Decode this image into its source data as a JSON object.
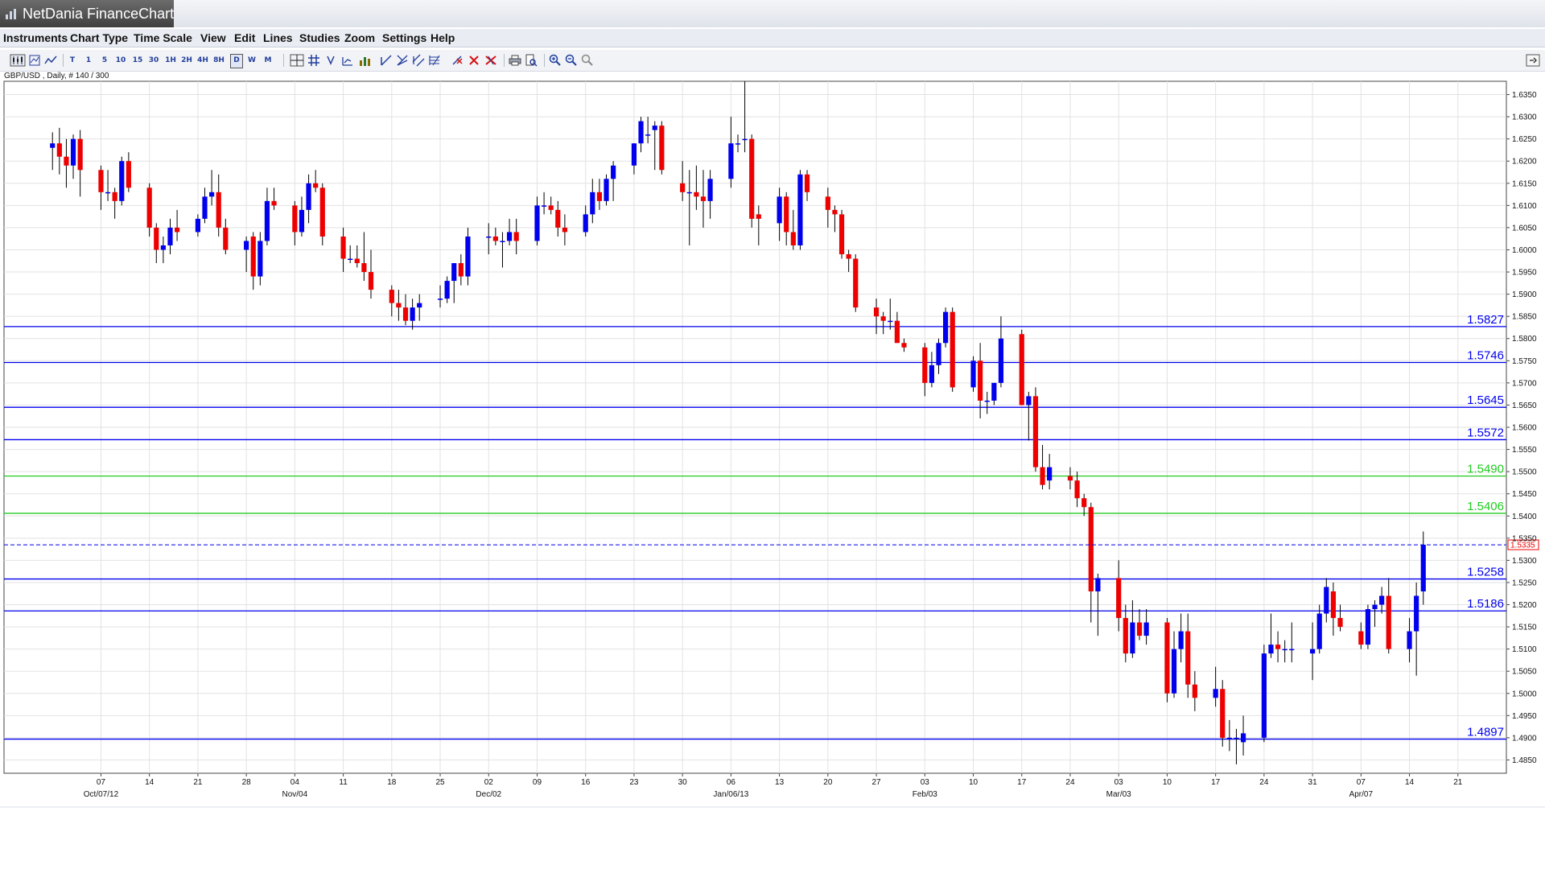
{
  "window": {
    "title": "NetDania FinanceChart"
  },
  "menu": [
    "Instruments",
    "Chart Type",
    "Time Scale",
    "View",
    "Edit",
    "Lines",
    "Studies",
    "Zoom",
    "Settings",
    "Help"
  ],
  "toolbar": {
    "timeframes": [
      "T",
      "1",
      "5",
      "10",
      "15",
      "30",
      "1H",
      "2H",
      "4H",
      "8H",
      "D",
      "W",
      "M"
    ],
    "active_timeframe": "D"
  },
  "symbol_label": "GBP/USD , Daily, # 140 / 300",
  "chart_data": {
    "type": "candlestick",
    "ylim": [
      1.482,
      1.638
    ],
    "y_ticks": [
      1.635,
      1.63,
      1.625,
      1.62,
      1.615,
      1.61,
      1.605,
      1.6,
      1.595,
      1.59,
      1.585,
      1.58,
      1.575,
      1.57,
      1.565,
      1.56,
      1.555,
      1.55,
      1.545,
      1.54,
      1.535,
      1.53,
      1.525,
      1.52,
      1.515,
      1.51,
      1.505,
      1.5,
      1.495,
      1.49,
      1.485
    ],
    "y_tick_labels": [
      "1.6350",
      "1.6300",
      "1.6250",
      "1.6200",
      "1.6150",
      "1.6100",
      "1.6050",
      "1.6000",
      "1.5950",
      "1.5900",
      "1.5850",
      "1.5800",
      "1.5750",
      "1.5700",
      "1.5650",
      "1.5600",
      "1.5550",
      "1.5500",
      "1.5450",
      "1.5400",
      "1.5350",
      "1.5300",
      "1.5250",
      "1.5200",
      "1.5150",
      "1.5100",
      "1.5050",
      "1.5000",
      "1.4950",
      "1.4900",
      "1.4850"
    ],
    "x_ticks": [
      {
        "day": 7,
        "label": "07",
        "sub": "Oct/07/12"
      },
      {
        "day": 14,
        "label": "14",
        "sub": ""
      },
      {
        "day": 21,
        "label": "21",
        "sub": ""
      },
      {
        "day": 28,
        "label": "28",
        "sub": ""
      },
      {
        "day": 35,
        "label": "04",
        "sub": "Nov/04"
      },
      {
        "day": 42,
        "label": "11",
        "sub": ""
      },
      {
        "day": 49,
        "label": "18",
        "sub": ""
      },
      {
        "day": 56,
        "label": "25",
        "sub": ""
      },
      {
        "day": 63,
        "label": "02",
        "sub": "Dec/02"
      },
      {
        "day": 70,
        "label": "09",
        "sub": ""
      },
      {
        "day": 77,
        "label": "16",
        "sub": ""
      },
      {
        "day": 84,
        "label": "23",
        "sub": ""
      },
      {
        "day": 91,
        "label": "30",
        "sub": ""
      },
      {
        "day": 98,
        "label": "06",
        "sub": "Jan/06/13"
      },
      {
        "day": 105,
        "label": "13",
        "sub": ""
      },
      {
        "day": 112,
        "label": "20",
        "sub": ""
      },
      {
        "day": 119,
        "label": "27",
        "sub": ""
      },
      {
        "day": 126,
        "label": "03",
        "sub": "Feb/03"
      },
      {
        "day": 133,
        "label": "10",
        "sub": ""
      },
      {
        "day": 140,
        "label": "17",
        "sub": ""
      },
      {
        "day": 147,
        "label": "24",
        "sub": ""
      },
      {
        "day": 154,
        "label": "03",
        "sub": "Mar/03"
      },
      {
        "day": 161,
        "label": "10",
        "sub": ""
      },
      {
        "day": 168,
        "label": "17",
        "sub": ""
      },
      {
        "day": 175,
        "label": "24",
        "sub": ""
      },
      {
        "day": 182,
        "label": "31",
        "sub": ""
      },
      {
        "day": 189,
        "label": "07",
        "sub": "Apr/07"
      },
      {
        "day": 196,
        "label": "14",
        "sub": ""
      },
      {
        "day": 203,
        "label": "21",
        "sub": ""
      }
    ],
    "x_range": [
      -7,
      210
    ],
    "grid": true,
    "up_color": "#0000ee",
    "down_color": "#ee0000",
    "candles": [
      [
        0,
        1.623,
        1.6265,
        1.618,
        1.624
      ],
      [
        1,
        1.624,
        1.6275,
        1.617,
        1.621
      ],
      [
        2,
        1.621,
        1.625,
        1.614,
        1.619
      ],
      [
        3,
        1.619,
        1.626,
        1.616,
        1.625
      ],
      [
        4,
        1.625,
        1.627,
        1.612,
        1.618
      ],
      [
        7,
        1.618,
        1.619,
        1.609,
        1.613
      ],
      [
        8,
        1.613,
        1.618,
        1.611,
        1.613
      ],
      [
        9,
        1.613,
        1.614,
        1.607,
        1.611
      ],
      [
        10,
        1.611,
        1.621,
        1.61,
        1.62
      ],
      [
        11,
        1.62,
        1.622,
        1.613,
        1.614
      ],
      [
        14,
        1.614,
        1.615,
        1.603,
        1.605
      ],
      [
        15,
        1.605,
        1.606,
        1.597,
        1.6
      ],
      [
        16,
        1.6,
        1.603,
        1.597,
        1.601
      ],
      [
        17,
        1.601,
        1.607,
        1.599,
        1.605
      ],
      [
        18,
        1.605,
        1.609,
        1.602,
        1.604
      ],
      [
        21,
        1.604,
        1.608,
        1.603,
        1.607
      ],
      [
        22,
        1.607,
        1.614,
        1.606,
        1.612
      ],
      [
        23,
        1.612,
        1.618,
        1.61,
        1.613
      ],
      [
        24,
        1.613,
        1.617,
        1.603,
        1.605
      ],
      [
        25,
        1.605,
        1.607,
        1.599,
        1.6
      ],
      [
        28,
        1.6,
        1.603,
        1.595,
        1.602
      ],
      [
        29,
        1.603,
        1.604,
        1.591,
        1.594
      ],
      [
        30,
        1.594,
        1.604,
        1.592,
        1.602
      ],
      [
        31,
        1.602,
        1.614,
        1.601,
        1.611
      ],
      [
        32,
        1.611,
        1.614,
        1.609,
        1.61
      ],
      [
        35,
        1.61,
        1.611,
        1.601,
        1.604
      ],
      [
        36,
        1.604,
        1.612,
        1.603,
        1.609
      ],
      [
        37,
        1.609,
        1.617,
        1.606,
        1.615
      ],
      [
        38,
        1.615,
        1.618,
        1.613,
        1.614
      ],
      [
        39,
        1.614,
        1.615,
        1.601,
        1.603
      ],
      [
        42,
        1.603,
        1.605,
        1.595,
        1.598
      ],
      [
        43,
        1.598,
        1.601,
        1.597,
        1.598
      ],
      [
        44,
        1.598,
        1.601,
        1.596,
        1.597
      ],
      [
        45,
        1.597,
        1.604,
        1.593,
        1.595
      ],
      [
        46,
        1.595,
        1.6,
        1.589,
        1.591
      ],
      [
        49,
        1.591,
        1.592,
        1.585,
        1.588
      ],
      [
        50,
        1.588,
        1.591,
        1.584,
        1.587
      ],
      [
        51,
        1.587,
        1.59,
        1.583,
        1.584
      ],
      [
        52,
        1.584,
        1.589,
        1.582,
        1.587
      ],
      [
        53,
        1.587,
        1.59,
        1.584,
        1.588
      ],
      [
        56,
        1.589,
        1.592,
        1.587,
        1.589
      ],
      [
        57,
        1.589,
        1.594,
        1.588,
        1.593
      ],
      [
        58,
        1.593,
        1.597,
        1.588,
        1.597
      ],
      [
        59,
        1.597,
        1.599,
        1.592,
        1.594
      ],
      [
        60,
        1.594,
        1.605,
        1.592,
        1.603
      ],
      [
        63,
        1.603,
        1.606,
        1.599,
        1.603
      ],
      [
        64,
        1.603,
        1.605,
        1.601,
        1.602
      ],
      [
        65,
        1.602,
        1.604,
        1.596,
        1.602
      ],
      [
        66,
        1.602,
        1.607,
        1.601,
        1.604
      ],
      [
        67,
        1.604,
        1.607,
        1.599,
        1.602
      ],
      [
        70,
        1.602,
        1.612,
        1.601,
        1.61
      ],
      [
        71,
        1.61,
        1.613,
        1.608,
        1.61
      ],
      [
        72,
        1.61,
        1.612,
        1.608,
        1.609
      ],
      [
        73,
        1.609,
        1.611,
        1.603,
        1.605
      ],
      [
        74,
        1.605,
        1.608,
        1.601,
        1.604
      ],
      [
        77,
        1.604,
        1.61,
        1.603,
        1.608
      ],
      [
        78,
        1.608,
        1.616,
        1.606,
        1.613
      ],
      [
        79,
        1.613,
        1.616,
        1.609,
        1.611
      ],
      [
        80,
        1.611,
        1.617,
        1.61,
        1.616
      ],
      [
        81,
        1.616,
        1.62,
        1.611,
        1.619
      ],
      [
        84,
        1.619,
        1.624,
        1.617,
        1.624
      ],
      [
        85,
        1.624,
        1.63,
        1.622,
        1.629
      ],
      [
        86,
        1.626,
        1.63,
        1.624,
        1.626
      ],
      [
        87,
        1.627,
        1.629,
        1.618,
        1.628
      ],
      [
        88,
        1.628,
        1.629,
        1.617,
        1.618
      ],
      [
        91,
        1.615,
        1.62,
        1.611,
        1.613
      ],
      [
        92,
        1.613,
        1.618,
        1.601,
        1.613
      ],
      [
        93,
        1.613,
        1.619,
        1.609,
        1.612
      ],
      [
        94,
        1.612,
        1.618,
        1.605,
        1.611
      ],
      [
        95,
        1.611,
        1.618,
        1.607,
        1.616
      ],
      [
        98,
        1.616,
        1.63,
        1.614,
        1.624
      ],
      [
        99,
        1.624,
        1.626,
        1.622,
        1.624
      ],
      [
        100,
        1.625,
        1.638,
        1.622,
        1.625
      ],
      [
        101,
        1.625,
        1.626,
        1.605,
        1.607
      ],
      [
        102,
        1.608,
        1.61,
        1.601,
        1.607
      ],
      [
        105,
        1.606,
        1.614,
        1.602,
        1.612
      ],
      [
        106,
        1.612,
        1.613,
        1.601,
        1.604
      ],
      [
        107,
        1.604,
        1.609,
        1.6,
        1.601
      ],
      [
        108,
        1.601,
        1.618,
        1.6,
        1.617
      ],
      [
        109,
        1.617,
        1.618,
        1.611,
        1.613
      ],
      [
        112,
        1.612,
        1.614,
        1.605,
        1.609
      ],
      [
        113,
        1.609,
        1.61,
        1.604,
        1.608
      ],
      [
        114,
        1.608,
        1.609,
        1.598,
        1.599
      ],
      [
        115,
        1.599,
        1.6,
        1.595,
        1.598
      ],
      [
        116,
        1.598,
        1.599,
        1.586,
        1.587
      ],
      [
        119,
        1.587,
        1.589,
        1.581,
        1.585
      ],
      [
        120,
        1.585,
        1.586,
        1.581,
        1.584
      ],
      [
        121,
        1.584,
        1.589,
        1.582,
        1.584
      ],
      [
        122,
        1.584,
        1.586,
        1.579,
        1.579
      ],
      [
        123,
        1.579,
        1.58,
        1.577,
        1.578
      ],
      [
        126,
        1.578,
        1.579,
        1.567,
        1.57
      ],
      [
        127,
        1.57,
        1.577,
        1.569,
        1.574
      ],
      [
        128,
        1.574,
        1.58,
        1.572,
        1.579
      ],
      [
        129,
        1.579,
        1.587,
        1.578,
        1.586
      ],
      [
        130,
        1.586,
        1.587,
        1.568,
        1.569
      ],
      [
        133,
        1.569,
        1.576,
        1.568,
        1.575
      ],
      [
        134,
        1.575,
        1.579,
        1.562,
        1.566
      ],
      [
        135,
        1.566,
        1.568,
        1.563,
        1.566
      ],
      [
        136,
        1.566,
        1.57,
        1.565,
        1.57
      ],
      [
        137,
        1.57,
        1.585,
        1.569,
        1.58
      ],
      [
        140,
        1.581,
        1.582,
        1.565,
        1.565
      ],
      [
        141,
        1.565,
        1.568,
        1.557,
        1.567
      ],
      [
        142,
        1.567,
        1.569,
        1.55,
        1.551
      ],
      [
        143,
        1.551,
        1.556,
        1.546,
        1.547
      ],
      [
        144,
        1.548,
        1.554,
        1.546,
        1.551
      ],
      [
        147,
        1.549,
        1.551,
        1.546,
        1.548
      ],
      [
        148,
        1.548,
        1.55,
        1.542,
        1.544
      ],
      [
        149,
        1.544,
        1.545,
        1.54,
        1.542
      ],
      [
        150,
        1.542,
        1.543,
        1.516,
        1.523
      ],
      [
        151,
        1.523,
        1.527,
        1.513,
        1.526
      ],
      [
        154,
        1.526,
        1.53,
        1.514,
        1.517
      ],
      [
        155,
        1.517,
        1.52,
        1.507,
        1.509
      ],
      [
        156,
        1.509,
        1.521,
        1.508,
        1.516
      ],
      [
        157,
        1.516,
        1.519,
        1.512,
        1.513
      ],
      [
        158,
        1.513,
        1.519,
        1.511,
        1.516
      ],
      [
        161,
        1.516,
        1.517,
        1.498,
        1.5
      ],
      [
        162,
        1.5,
        1.514,
        1.499,
        1.51
      ],
      [
        163,
        1.51,
        1.518,
        1.507,
        1.514
      ],
      [
        164,
        1.514,
        1.518,
        1.499,
        1.502
      ],
      [
        165,
        1.502,
        1.505,
        1.496,
        1.499
      ],
      [
        168,
        1.499,
        1.506,
        1.497,
        1.501
      ],
      [
        169,
        1.501,
        1.503,
        1.488,
        1.49
      ],
      [
        170,
        1.49,
        1.494,
        1.487,
        1.49
      ],
      [
        171,
        1.49,
        1.492,
        1.484,
        1.49
      ],
      [
        172,
        1.489,
        1.495,
        1.486,
        1.491
      ],
      [
        175,
        1.49,
        1.511,
        1.489,
        1.509
      ],
      [
        176,
        1.509,
        1.518,
        1.508,
        1.511
      ],
      [
        177,
        1.511,
        1.514,
        1.507,
        1.51
      ],
      [
        178,
        1.51,
        1.512,
        1.507,
        1.51
      ],
      [
        179,
        1.51,
        1.516,
        1.507,
        1.51
      ],
      [
        182,
        1.509,
        1.516,
        1.503,
        1.51
      ],
      [
        183,
        1.51,
        1.52,
        1.509,
        1.518
      ],
      [
        184,
        1.518,
        1.526,
        1.516,
        1.524
      ],
      [
        185,
        1.523,
        1.525,
        1.513,
        1.517
      ],
      [
        186,
        1.517,
        1.52,
        1.514,
        1.515
      ],
      [
        189,
        1.514,
        1.516,
        1.51,
        1.511
      ],
      [
        190,
        1.511,
        1.52,
        1.51,
        1.519
      ],
      [
        191,
        1.519,
        1.521,
        1.515,
        1.52
      ],
      [
        192,
        1.52,
        1.524,
        1.518,
        1.522
      ],
      [
        193,
        1.522,
        1.526,
        1.509,
        1.51
      ],
      [
        196,
        1.51,
        1.517,
        1.507,
        1.514
      ],
      [
        197,
        1.514,
        1.525,
        1.504,
        1.522
      ],
      [
        198,
        1.523,
        1.5365,
        1.52,
        1.5335
      ]
    ],
    "horizontal_lines": [
      {
        "value": 1.5827,
        "label": "1.5827",
        "color": "#0000ee"
      },
      {
        "value": 1.5746,
        "label": "1.5746",
        "color": "#0000ee"
      },
      {
        "value": 1.5645,
        "label": "1.5645",
        "color": "#0000ee"
      },
      {
        "value": 1.5572,
        "label": "1.5572",
        "color": "#0000ee"
      },
      {
        "value": 1.549,
        "label": "1.5490",
        "color": "#22cc22"
      },
      {
        "value": 1.5406,
        "label": "1.5406",
        "color": "#22cc22"
      },
      {
        "value": 1.5258,
        "label": "1.5258",
        "color": "#0000ee"
      },
      {
        "value": 1.5186,
        "label": "1.5186",
        "color": "#0000ee"
      },
      {
        "value": 1.4897,
        "label": "1.4897",
        "color": "#0000ee"
      }
    ],
    "current_price": {
      "value": 1.5335,
      "label": "1.5335",
      "color": "#ee0000",
      "line_color": "#0000ee"
    }
  }
}
